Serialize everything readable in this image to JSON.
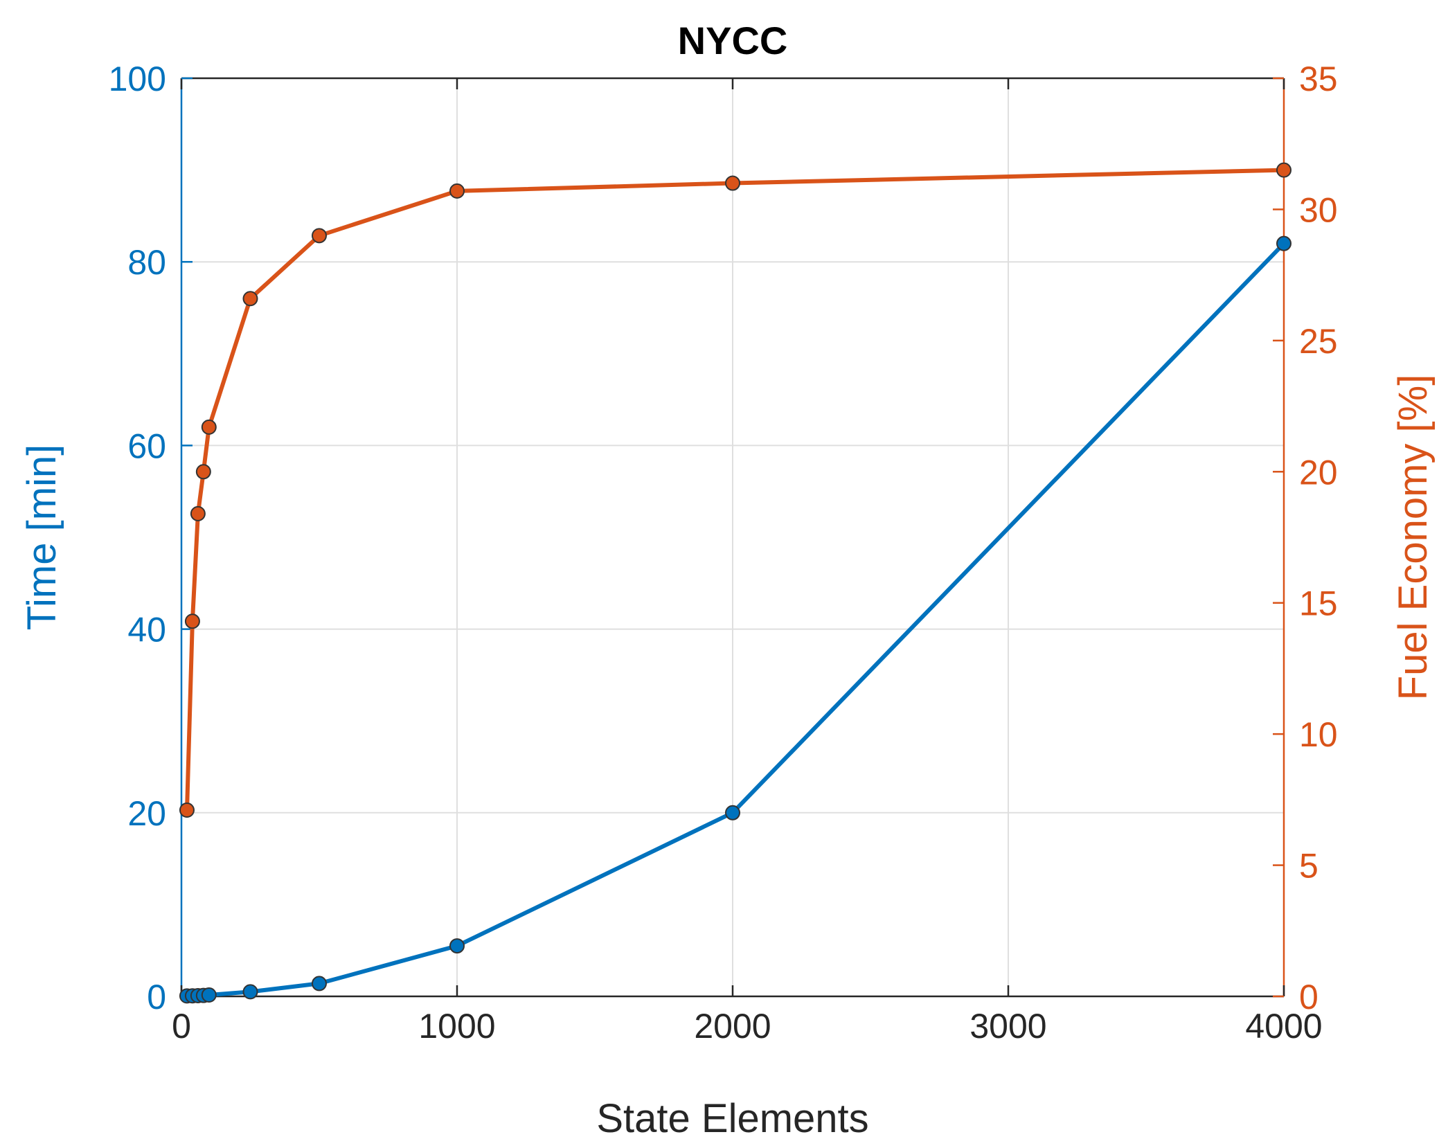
{
  "chart_data": {
    "type": "line",
    "title": "NYCC",
    "xlabel": "State Elements",
    "ylabel_left": "Time [min]",
    "ylabel_right": "Fuel Economy [%]",
    "xlim": [
      0,
      4000
    ],
    "ylim_left": [
      0,
      100
    ],
    "ylim_right": [
      0,
      35
    ],
    "xticks": [
      0,
      1000,
      2000,
      3000,
      4000
    ],
    "yticks_left": [
      0,
      20,
      40,
      60,
      80,
      100
    ],
    "yticks_right": [
      0,
      5,
      10,
      15,
      20,
      25,
      30,
      35
    ],
    "grid": true,
    "colors": {
      "left": "#0072BD",
      "right": "#D95319",
      "x_axis": "#262626"
    },
    "series": [
      {
        "axis": "left",
        "x": [
          20,
          40,
          60,
          80,
          100,
          250,
          500,
          1000,
          2000,
          4000
        ],
        "y": [
          0.05,
          0.06,
          0.08,
          0.1,
          0.15,
          0.5,
          1.4,
          5.5,
          20,
          82
        ]
      },
      {
        "axis": "right",
        "x": [
          20,
          40,
          60,
          80,
          100,
          250,
          500,
          1000,
          2000,
          4000
        ],
        "y": [
          7.1,
          14.3,
          18.4,
          20,
          21.7,
          26.6,
          29,
          30.7,
          31,
          31.5
        ]
      }
    ]
  }
}
